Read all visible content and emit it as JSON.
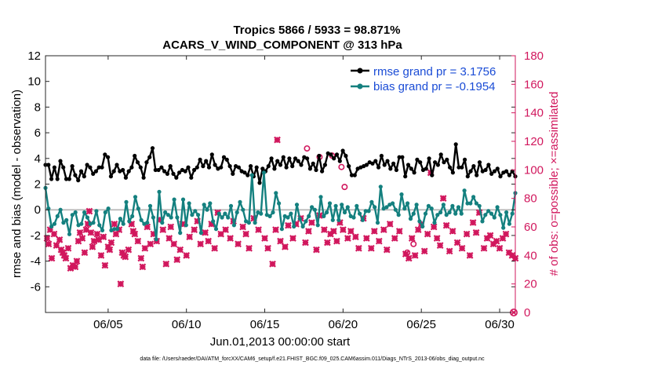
{
  "chart_data": {
    "type": "line",
    "title": "Tropics 5866 / 5933 = 98.871%",
    "subtitle": "ACARS_V_WIND_COMPONENT @ 313 hPa",
    "xlabel": "Jun.01,2013 00:00:00 start",
    "ylabel_left": "rmse and bias (model - observation)",
    "ylabel_right": "# of obs: o=possible; ×=assimilated",
    "footnote": "data file: /Users/raeder/DAI/ATM_forcXX/CAM6_setup/f.e21.FHIST_BGC.f09_025.CAM6assim.011/Diags_NTrS_2013-06/obs_diag_output.nc",
    "xlim": [
      1.0,
      31.0
    ],
    "ylim_left": [
      -8,
      12
    ],
    "ylim_right": [
      0,
      180
    ],
    "x_ticks": [
      5,
      10,
      15,
      20,
      25,
      30
    ],
    "x_tick_labels": [
      "06/05",
      "06/10",
      "06/15",
      "06/20",
      "06/25",
      "06/30"
    ],
    "y_ticks_left": [
      -6,
      -4,
      -2,
      0,
      2,
      4,
      6,
      8,
      10,
      12
    ],
    "y_ticks_right": [
      0,
      20,
      40,
      60,
      80,
      100,
      120,
      140,
      160,
      180
    ],
    "zero_line": 0,
    "legend_position": "top-right",
    "colors": {
      "rmse": "#000000",
      "bias": "#14807f",
      "obs": "#d1175d",
      "legend_text": "#1a4cd6",
      "zero_line": "#bfbfbf",
      "right_axis": "#d1175d"
    },
    "series": [
      {
        "name": "rmse grand pr = 3.1756",
        "axis": "left",
        "values": [
          3.5,
          3.5,
          2.4,
          3.3,
          2.4,
          3.8,
          3.3,
          2.4,
          2.4,
          3.4,
          2.7,
          2.3,
          3.0,
          2.6,
          3.5,
          3.3,
          2.8,
          3.0,
          3.3,
          3.3,
          4.3,
          4.1,
          2.6,
          3.0,
          3.5,
          3.0,
          3.1,
          2.5,
          3.0,
          3.3,
          4.2,
          3.7,
          3.3,
          2.5,
          3.7,
          4.1,
          4.8,
          3.1,
          3.1,
          3.3,
          3.0,
          2.8,
          3.4,
          2.8,
          2.5,
          2.9,
          3.1,
          3.0,
          3.3,
          2.5,
          3.1,
          3.3,
          3.9,
          3.4,
          3.8,
          3.3,
          4.3,
          3.5,
          3.2,
          3.3,
          4.1,
          3.9,
          3.4,
          2.8,
          3.4,
          3.3,
          3.0,
          2.9,
          2.7,
          3.4,
          2.6,
          3.3,
          2.1,
          3.2,
          3.0,
          3.4,
          4.0,
          3.2,
          3.8,
          3.5,
          4.1,
          3.3,
          4.0,
          3.4,
          4.0,
          3.8,
          3.5,
          4.1,
          4.0,
          3.2,
          3.6,
          3.1,
          4.2,
          3.0,
          3.5,
          4.4,
          4.3,
          4.0,
          4.3,
          3.8,
          4.6,
          4.2,
          3.4,
          2.7,
          2.7,
          3.2,
          3.3,
          3.4,
          3.5,
          3.7,
          3.6,
          3.8,
          3.3,
          4.2,
          3.5,
          3.8,
          3.2,
          3.6,
          3.1,
          4.1,
          4.1,
          2.6,
          3.5,
          3.2,
          2.9,
          3.9,
          3.7,
          3.1,
          3.2,
          4.0,
          2.7,
          3.7,
          3.5,
          4.3,
          3.7,
          3.9,
          3.3,
          2.9,
          5.1,
          3.3,
          3.3,
          3.9,
          2.6,
          3.0,
          3.4,
          2.7,
          3.7,
          3.0,
          3.1,
          3.5,
          2.8,
          3.0,
          3.2,
          2.6,
          2.9,
          3.0,
          2.7,
          3.0,
          2.6
        ]
      },
      {
        "name": "bias grand pr = -0.1954",
        "axis": "left",
        "values": [
          1.7,
          0.1,
          -1.3,
          -1.1,
          -0.5,
          0.0,
          -1.0,
          -0.8,
          -1.9,
          -0.4,
          -0.2,
          -1.2,
          -1.1,
          -0.2,
          -0.6,
          -1.1,
          -1.0,
          -0.1,
          -1.2,
          -1.6,
          -0.2,
          0.1,
          -1.6,
          -1.5,
          -1.5,
          -0.7,
          -1.1,
          0.6,
          -0.9,
          -0.5,
          1.0,
          0.1,
          -0.8,
          -1.1,
          -1.0,
          0.3,
          -0.6,
          -2.3,
          1.4,
          -1.0,
          -0.2,
          -0.4,
          -0.6,
          0.8,
          -0.6,
          -1.8,
          0.8,
          -1.2,
          0.5,
          -0.4,
          -0.1,
          -0.4,
          -1.8,
          0.4,
          0.0,
          0.5,
          -0.9,
          -1.5,
          -0.3,
          -0.6,
          -0.3,
          -0.6,
          0.3,
          -1.2,
          -0.2,
          0.6,
          0.0,
          -0.9,
          -1.0,
          2.7,
          -1.0,
          -0.2,
          -0.3,
          2.9,
          -0.4,
          -0.5,
          -0.2,
          1.3,
          0.5,
          -1.5,
          -0.5,
          -0.6,
          -0.3,
          -1.3,
          0.4,
          -0.7,
          -1.3,
          -0.9,
          -0.5,
          0.2,
          0.0,
          -1.2,
          1.0,
          -0.5,
          -0.2,
          0.5,
          -0.8,
          0.3,
          -0.8,
          0.4,
          -0.2,
          0.2,
          -0.5,
          -0.6,
          0.3,
          -0.3,
          -0.8,
          -0.1,
          -0.1,
          0.6,
          0.2,
          -1.0,
          1.8,
          0.1,
          0.2,
          0.4,
          0.5,
          0.0,
          -0.4,
          1.2,
          0.1,
          0.5,
          -0.7,
          -0.3,
          0.4,
          -0.9,
          -1.3,
          -0.3,
          0.3,
          0.1,
          -1.0,
          -0.4,
          -0.2,
          0.4,
          -0.4,
          -0.2,
          0.3,
          -0.3,
          0.2,
          -0.3,
          1.5,
          0.5,
          0.5,
          1.0,
          0.5,
          0.3,
          -0.9,
          -0.4,
          -0.1,
          -0.3,
          -0.6,
          0.2,
          -0.4,
          -1.4,
          -0.2,
          -1.1,
          -0.3,
          1.3
        ]
      }
    ],
    "obs_assimilated": [
      [
        1.1,
        52
      ],
      [
        1.2,
        48
      ],
      [
        1.3,
        58
      ],
      [
        1.4,
        38
      ],
      [
        1.55,
        55
      ],
      [
        1.7,
        47
      ],
      [
        1.9,
        51
      ],
      [
        2.0,
        44
      ],
      [
        2.1,
        42
      ],
      [
        2.2,
        40
      ],
      [
        2.3,
        38
      ],
      [
        2.45,
        45
      ],
      [
        2.6,
        31
      ],
      [
        2.75,
        33
      ],
      [
        2.9,
        32
      ],
      [
        3.0,
        36
      ],
      [
        3.1,
        50
      ],
      [
        3.2,
        56
      ],
      [
        3.35,
        52
      ],
      [
        3.5,
        42
      ],
      [
        3.6,
        58
      ],
      [
        3.7,
        62
      ],
      [
        3.8,
        71
      ],
      [
        3.9,
        56
      ],
      [
        4.0,
        46
      ],
      [
        4.1,
        50
      ],
      [
        4.3,
        55
      ],
      [
        4.4,
        51
      ],
      [
        4.55,
        40
      ],
      [
        4.7,
        53
      ],
      [
        4.8,
        33
      ],
      [
        5.0,
        46
      ],
      [
        5.1,
        44
      ],
      [
        5.2,
        49
      ],
      [
        5.4,
        62
      ],
      [
        5.5,
        55
      ],
      [
        5.7,
        58
      ],
      [
        5.8,
        20
      ],
      [
        5.9,
        42
      ],
      [
        6.0,
        40
      ],
      [
        6.1,
        39
      ],
      [
        6.3,
        44
      ],
      [
        6.5,
        62
      ],
      [
        6.6,
        57
      ],
      [
        6.7,
        55
      ],
      [
        6.9,
        50
      ],
      [
        7.1,
        38
      ],
      [
        7.2,
        32
      ],
      [
        7.35,
        45
      ],
      [
        7.5,
        60
      ],
      [
        7.7,
        48
      ],
      [
        7.9,
        55
      ],
      [
        8.1,
        50
      ],
      [
        8.3,
        65
      ],
      [
        8.5,
        58
      ],
      [
        8.7,
        34
      ],
      [
        8.9,
        52
      ],
      [
        9.0,
        60
      ],
      [
        9.2,
        48
      ],
      [
        9.4,
        37
      ],
      [
        9.6,
        44
      ],
      [
        9.75,
        62
      ],
      [
        10.0,
        40
      ],
      [
        10.2,
        53
      ],
      [
        10.5,
        58
      ],
      [
        10.7,
        64
      ],
      [
        10.9,
        48
      ],
      [
        11.2,
        56
      ],
      [
        11.4,
        50
      ],
      [
        11.6,
        62
      ],
      [
        11.8,
        45
      ],
      [
        12.0,
        70
      ],
      [
        12.2,
        55
      ],
      [
        12.5,
        58
      ],
      [
        12.8,
        52
      ],
      [
        13.0,
        64
      ],
      [
        13.3,
        48
      ],
      [
        13.6,
        60
      ],
      [
        13.8,
        55
      ],
      [
        14.0,
        45
      ],
      [
        14.3,
        66
      ],
      [
        14.6,
        58
      ],
      [
        15.0,
        52
      ],
      [
        15.2,
        45
      ],
      [
        15.5,
        34
      ],
      [
        15.7,
        58
      ],
      [
        15.8,
        121
      ],
      [
        16.0,
        50
      ],
      [
        16.3,
        46
      ],
      [
        16.5,
        61
      ],
      [
        16.8,
        52
      ],
      [
        17.0,
        62
      ],
      [
        17.3,
        66
      ],
      [
        17.6,
        49
      ],
      [
        17.8,
        57
      ],
      [
        18.0,
        63
      ],
      [
        18.3,
        44
      ],
      [
        18.5,
        68
      ],
      [
        18.8,
        58
      ],
      [
        19.0,
        49
      ],
      [
        19.2,
        55
      ],
      [
        19.4,
        57
      ],
      [
        19.6,
        50
      ],
      [
        19.8,
        63
      ],
      [
        20.0,
        58
      ],
      [
        20.3,
        52
      ],
      [
        20.5,
        57
      ],
      [
        20.8,
        53
      ],
      [
        21.0,
        45
      ],
      [
        21.3,
        66
      ],
      [
        21.5,
        52
      ],
      [
        21.8,
        45
      ],
      [
        22.0,
        57
      ],
      [
        22.3,
        50
      ],
      [
        22.6,
        58
      ],
      [
        22.8,
        44
      ],
      [
        23.0,
        62
      ],
      [
        23.3,
        52
      ],
      [
        23.6,
        57
      ],
      [
        24.0,
        41
      ],
      [
        24.2,
        38
      ],
      [
        24.4,
        52
      ],
      [
        24.6,
        40
      ],
      [
        24.8,
        58
      ],
      [
        25.0,
        62
      ],
      [
        25.2,
        43
      ],
      [
        25.4,
        55
      ],
      [
        25.6,
        98
      ],
      [
        25.8,
        60
      ],
      [
        26.0,
        52
      ],
      [
        26.2,
        47
      ],
      [
        26.4,
        80
      ],
      [
        26.6,
        61
      ],
      [
        26.8,
        43
      ],
      [
        27.0,
        57
      ],
      [
        27.3,
        49
      ],
      [
        27.6,
        45
      ],
      [
        27.9,
        55
      ],
      [
        28.1,
        40
      ],
      [
        28.3,
        63
      ],
      [
        28.5,
        56
      ],
      [
        28.7,
        70
      ],
      [
        29.0,
        45
      ],
      [
        29.2,
        52
      ],
      [
        29.4,
        54
      ],
      [
        29.6,
        48
      ],
      [
        29.8,
        50
      ],
      [
        30.0,
        45
      ],
      [
        30.2,
        52
      ],
      [
        30.4,
        55
      ],
      [
        30.6,
        42
      ],
      [
        30.8,
        40
      ],
      [
        31.0,
        38
      ]
    ],
    "obs_possible": [
      [
        17.7,
        115
      ],
      [
        18.5,
        109
      ],
      [
        19.3,
        110
      ],
      [
        19.9,
        102
      ],
      [
        20.1,
        88
      ],
      [
        24.1,
        42
      ],
      [
        24.5,
        48
      ]
    ],
    "obs_possible_edge": [
      30.9,
      0
    ]
  }
}
